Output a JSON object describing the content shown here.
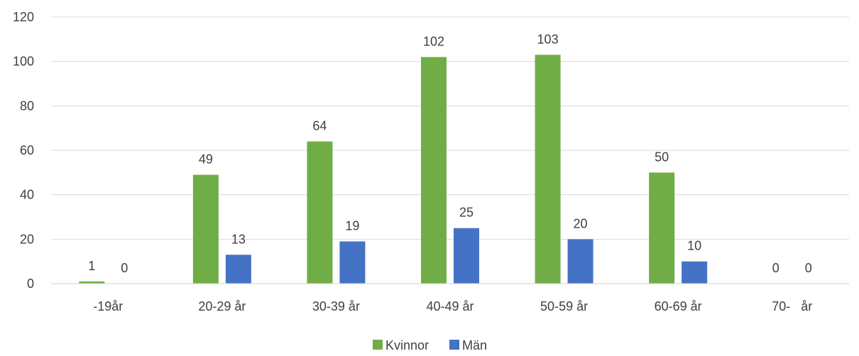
{
  "chart_data": {
    "type": "bar",
    "title": "",
    "xlabel": "",
    "ylabel": "",
    "ylim": [
      0,
      120
    ],
    "yticks": [
      0,
      20,
      40,
      60,
      80,
      100,
      120
    ],
    "grid": true,
    "legend_position": "bottom",
    "categories": [
      "-19år",
      "20-29 år",
      "30-39 år",
      "40-49 år",
      "50-59 år",
      "60-69 år",
      "70-   år"
    ],
    "series": [
      {
        "name": "Kvinnor",
        "color": "#70ad47",
        "values": [
          1,
          49,
          64,
          102,
          103,
          50,
          0
        ]
      },
      {
        "name": "Män",
        "color": "#4472c4",
        "values": [
          0,
          13,
          19,
          25,
          20,
          10,
          0
        ]
      }
    ]
  }
}
